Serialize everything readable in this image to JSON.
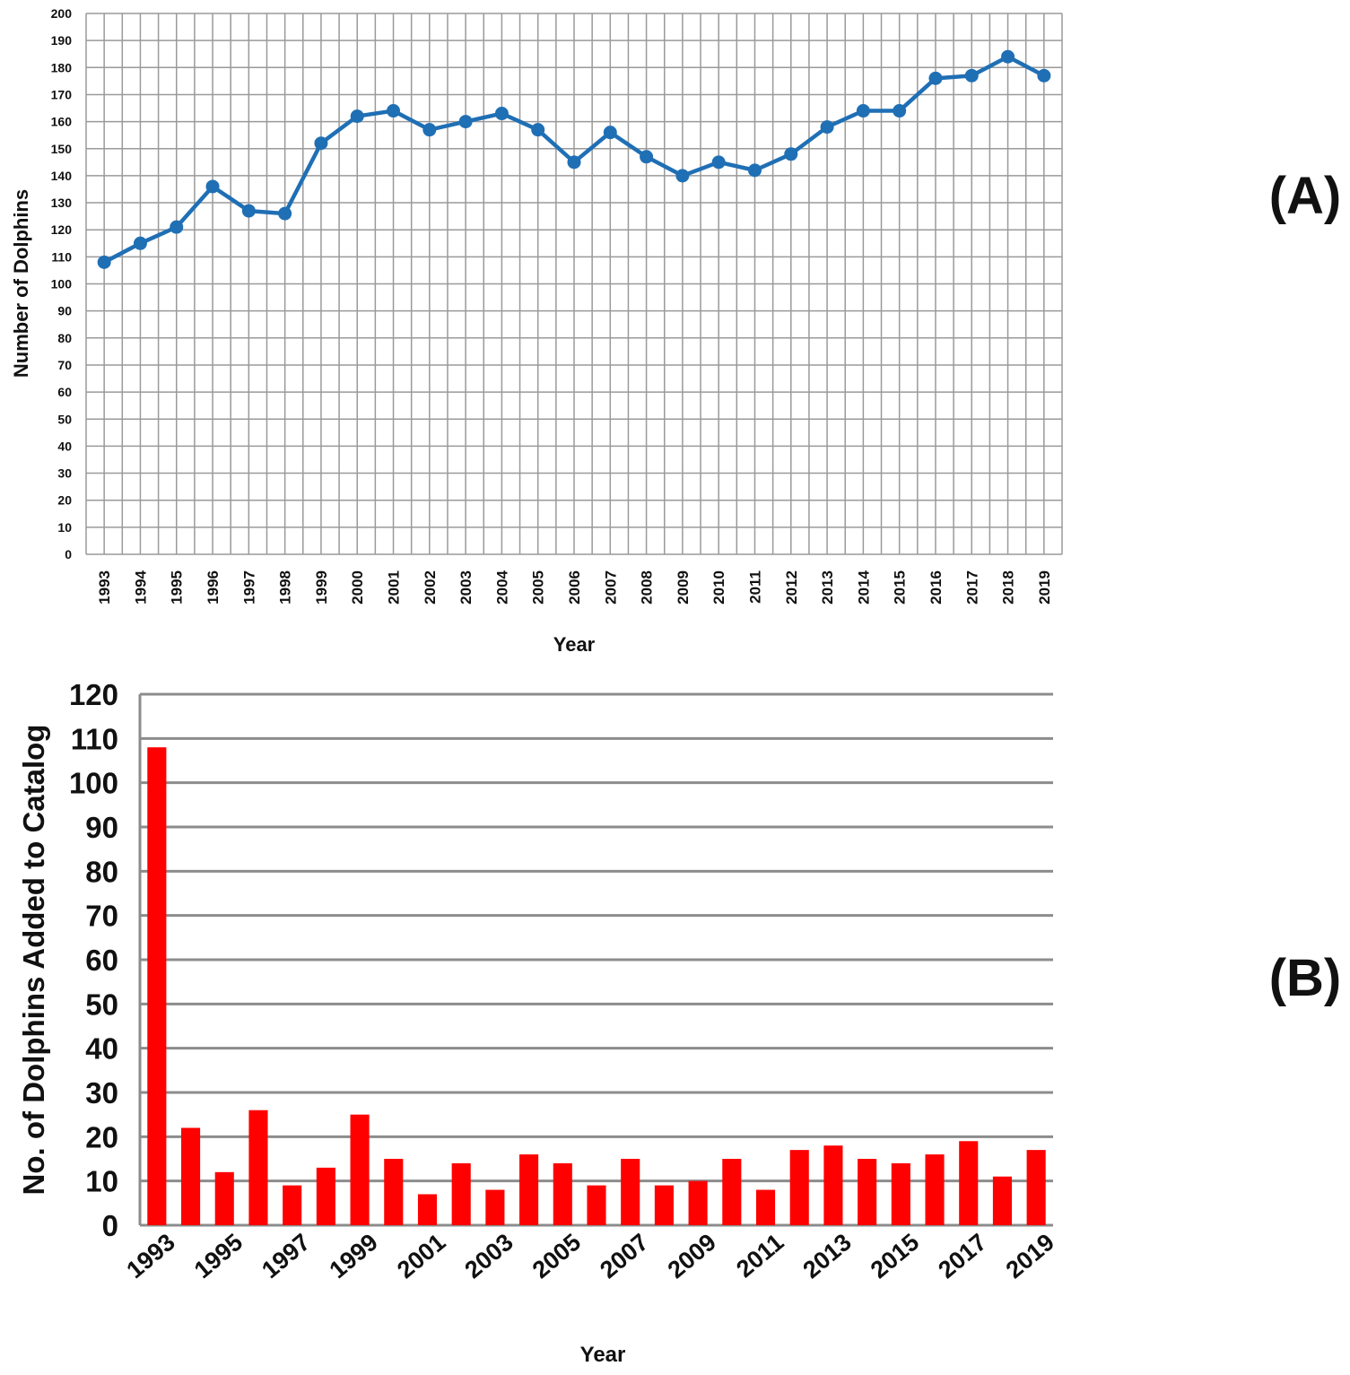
{
  "chart_data": [
    {
      "type": "line",
      "panel_label": "(A)",
      "xlabel": "Year",
      "ylabel": "Number of Dolphins",
      "ylim": [
        0,
        200
      ],
      "yticks": [
        0,
        10,
        20,
        30,
        40,
        50,
        60,
        70,
        80,
        90,
        100,
        110,
        120,
        130,
        140,
        150,
        160,
        170,
        180,
        190,
        200
      ],
      "grid": true,
      "categories": [
        "1993",
        "1994",
        "1995",
        "1996",
        "1997",
        "1998",
        "1999",
        "2000",
        "2001",
        "2002",
        "2003",
        "2004",
        "2005",
        "2006",
        "2007",
        "2008",
        "2009",
        "2010",
        "2011",
        "2012",
        "2013",
        "2014",
        "2015",
        "2016",
        "2017",
        "2018",
        "2019"
      ],
      "values": [
        108,
        115,
        121,
        136,
        127,
        126,
        152,
        162,
        164,
        157,
        160,
        163,
        157,
        145,
        156,
        147,
        140,
        145,
        142,
        148,
        158,
        164,
        164,
        176,
        177,
        184,
        177
      ],
      "color": "#1f6fb5"
    },
    {
      "type": "bar",
      "panel_label": "(B)",
      "xlabel": "Year",
      "ylabel": "No. of Dolphins Added to Catalog",
      "ylim": [
        0,
        120
      ],
      "yticks": [
        0,
        10,
        20,
        30,
        40,
        50,
        60,
        70,
        80,
        90,
        100,
        110,
        120
      ],
      "grid": true,
      "categories": [
        "1993",
        "1994",
        "1995",
        "1996",
        "1997",
        "1998",
        "1999",
        "2000",
        "2001",
        "2002",
        "2003",
        "2004",
        "2005",
        "2006",
        "2007",
        "2008",
        "2009",
        "2010",
        "2011",
        "2012",
        "2013",
        "2014",
        "2015",
        "2016",
        "2017",
        "2018",
        "2019"
      ],
      "tick_labels": [
        "1993",
        "1995",
        "1997",
        "1999",
        "2001",
        "2003",
        "2005",
        "2007",
        "2009",
        "2011",
        "2013",
        "2015",
        "2017",
        "2019"
      ],
      "values": [
        108,
        22,
        12,
        26,
        9,
        13,
        25,
        15,
        7,
        14,
        8,
        16,
        14,
        9,
        15,
        9,
        10,
        15,
        8,
        17,
        18,
        15,
        14,
        16,
        19,
        11,
        17
      ],
      "color": "#ff0000"
    }
  ]
}
